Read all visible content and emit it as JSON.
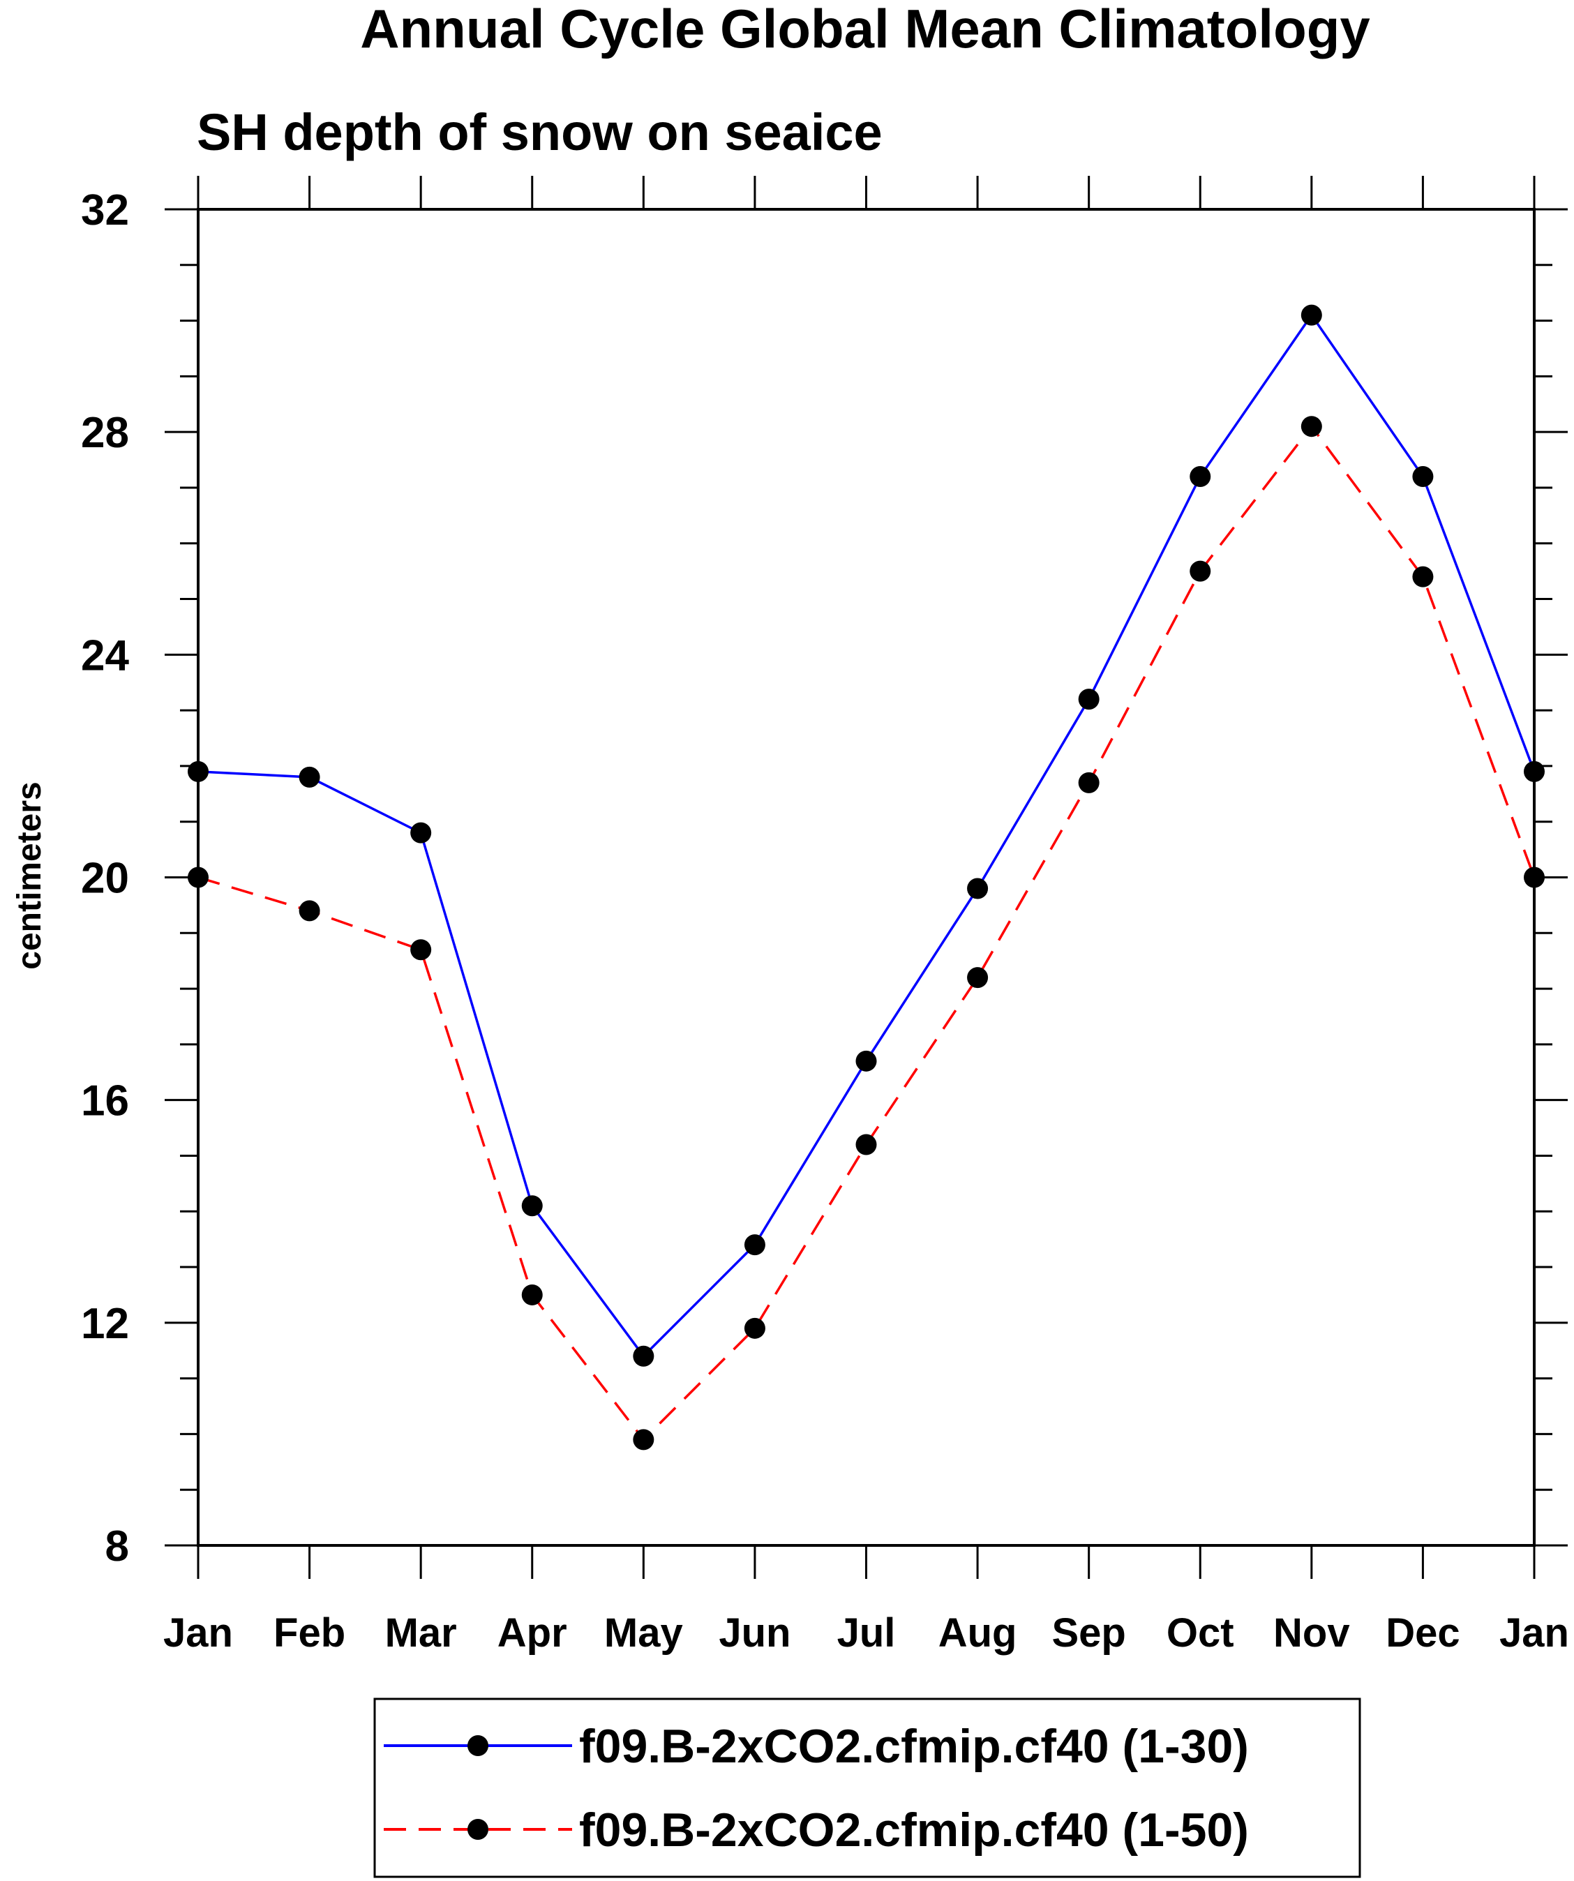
{
  "chart_data": {
    "type": "line",
    "title": "Annual Cycle Global Mean Climatology",
    "subtitle": "SH depth of snow on seaice",
    "xlabel": "",
    "ylabel": "centimeters",
    "categories": [
      "Jan",
      "Feb",
      "Mar",
      "Apr",
      "May",
      "Jun",
      "Jul",
      "Aug",
      "Sep",
      "Oct",
      "Nov",
      "Dec",
      "Jan"
    ],
    "ylim": [
      8,
      32
    ],
    "yticks": [
      "8",
      "12",
      "16",
      "20",
      "24",
      "28",
      "32"
    ],
    "yminor_step": 1,
    "grid": false,
    "legend_position": "bottom-center",
    "series": [
      {
        "name": "f09.B-2xCO2.cfmip.cf40 (1-30)",
        "color": "#0000ff",
        "dash": "solid",
        "marker": "filled-circle",
        "values": [
          21.9,
          21.8,
          20.8,
          14.1,
          11.4,
          13.4,
          16.7,
          19.8,
          23.2,
          27.2,
          30.1,
          27.2,
          21.9
        ]
      },
      {
        "name": "f09.B-2xCO2.cfmip.cf40 (1-50)",
        "color": "#ff0000",
        "dash": "dashed",
        "marker": "filled-circle",
        "values": [
          20.0,
          19.4,
          18.7,
          12.5,
          9.9,
          11.9,
          15.2,
          18.2,
          21.7,
          25.5,
          28.1,
          25.4,
          20.0
        ]
      }
    ]
  }
}
